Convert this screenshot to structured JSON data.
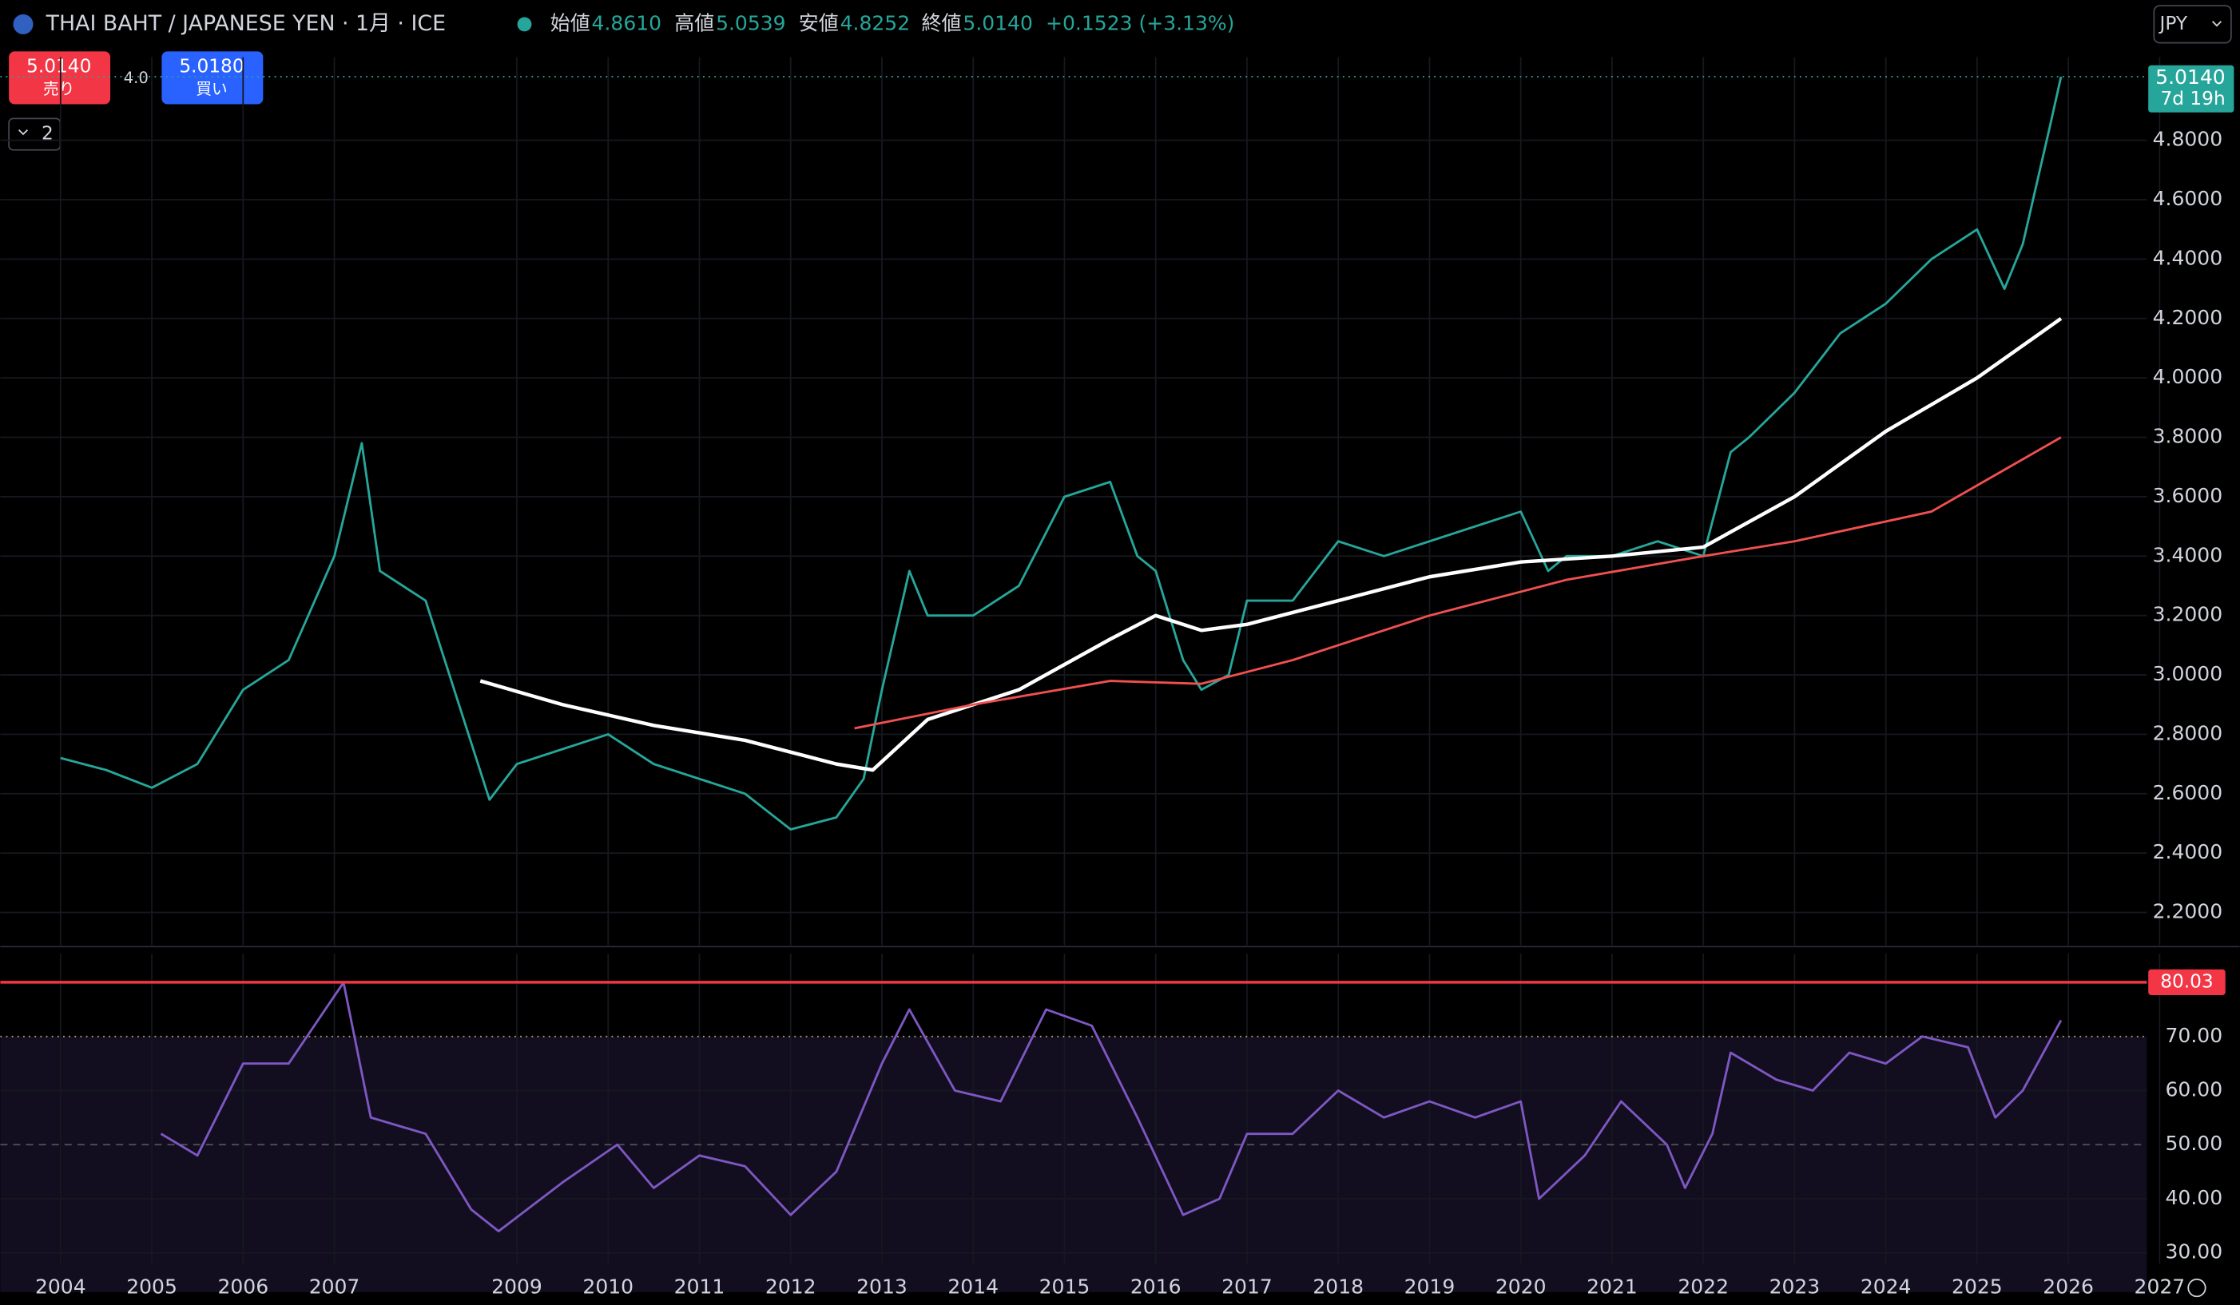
{
  "header": {
    "symbol": "THAI BAHT / JAPANESE YEN · 1月 · ICE",
    "open_label": "始値",
    "open": "4.8610",
    "high_label": "高値",
    "high": "5.0539",
    "low_label": "安値",
    "low": "4.8252",
    "close_label": "終値",
    "close": "5.0140",
    "change": "+0.1523 (+3.13%)",
    "sell_price": "5.0140",
    "sell_label": "売り",
    "spread": "4.0",
    "buy_price": "5.0180",
    "buy_label": "買い",
    "indicators": "2",
    "currency": "JPY"
  },
  "chart_data": [
    {
      "type": "line",
      "xlim": [
        2003.34,
        2026.86
      ],
      "ylim": [
        2.09,
        5.08
      ],
      "yticks": [
        {
          "value": 2.2,
          "label": "2.2000"
        },
        {
          "value": 2.4,
          "label": "2.4000"
        },
        {
          "value": 2.6,
          "label": "2.6000"
        },
        {
          "value": 2.8,
          "label": "2.8000"
        },
        {
          "value": 3.0,
          "label": "3.0000"
        },
        {
          "value": 3.2,
          "label": "3.2000"
        },
        {
          "value": 3.4,
          "label": "3.4000"
        },
        {
          "value": 3.6,
          "label": "3.6000"
        },
        {
          "value": 3.8,
          "label": "3.8000"
        },
        {
          "value": 4.0,
          "label": "4.0000"
        },
        {
          "value": 4.2,
          "label": "4.2000"
        },
        {
          "value": 4.4,
          "label": "4.4000"
        },
        {
          "value": 4.6,
          "label": "4.6000"
        },
        {
          "value": 4.8,
          "label": "4.8000"
        }
      ],
      "price_line": {
        "value": 5.014,
        "label": "5.0140",
        "countdown": "7d 19h"
      },
      "series": [
        {
          "color": "#26a69a",
          "x": [
            2004.0,
            2004.5,
            2005.0,
            2005.5,
            2006.0,
            2006.5,
            2007.0,
            2007.3,
            2007.5,
            2008.0,
            2008.7,
            2009.0,
            2009.5,
            2010.0,
            2010.5,
            2011.0,
            2011.5,
            2012.0,
            2012.5,
            2012.8,
            2013.0,
            2013.3,
            2013.5,
            2014.0,
            2014.5,
            2015.0,
            2015.5,
            2015.8,
            2016.0,
            2016.3,
            2016.5,
            2016.8,
            2017.0,
            2017.5,
            2018.0,
            2018.5,
            2019.0,
            2019.5,
            2020.0,
            2020.3,
            2020.5,
            2021.0,
            2021.5,
            2022.0,
            2022.3,
            2022.5,
            2023.0,
            2023.5,
            2024.0,
            2024.5,
            2025.0,
            2025.3,
            2025.5,
            2025.8,
            2025.92
          ],
          "values": [
            2.72,
            2.68,
            2.62,
            2.7,
            2.95,
            3.05,
            3.4,
            3.78,
            3.35,
            3.25,
            2.58,
            2.7,
            2.75,
            2.8,
            2.7,
            2.65,
            2.6,
            2.48,
            2.52,
            2.65,
            2.95,
            3.35,
            3.2,
            3.2,
            3.3,
            3.6,
            3.65,
            3.4,
            3.35,
            3.05,
            2.95,
            3.0,
            3.25,
            3.25,
            3.45,
            3.4,
            3.45,
            3.5,
            3.55,
            3.35,
            3.4,
            3.4,
            3.45,
            3.4,
            3.75,
            3.8,
            3.95,
            4.15,
            4.25,
            4.4,
            4.5,
            4.3,
            4.45,
            4.85,
            5.014
          ]
        },
        {
          "color": "#ffffff",
          "x": [
            2008.6,
            2009.5,
            2010.5,
            2011.5,
            2012.5,
            2012.9,
            2013.5,
            2014.5,
            2015.5,
            2016.0,
            2016.5,
            2017.0,
            2018.0,
            2019.0,
            2020.0,
            2021.0,
            2022.0,
            2023.0,
            2024.0,
            2025.0,
            2025.92
          ],
          "values": [
            2.98,
            2.9,
            2.83,
            2.78,
            2.7,
            2.68,
            2.85,
            2.95,
            3.12,
            3.2,
            3.15,
            3.17,
            3.25,
            3.33,
            3.38,
            3.4,
            3.43,
            3.6,
            3.82,
            4.0,
            4.2
          ]
        },
        {
          "color": "#f0504f",
          "x": [
            2012.7,
            2014.0,
            2015.5,
            2016.5,
            2017.5,
            2019.0,
            2020.5,
            2022.0,
            2023.0,
            2024.5,
            2025.92
          ],
          "values": [
            2.82,
            2.9,
            2.98,
            2.97,
            3.05,
            3.2,
            3.32,
            3.4,
            3.45,
            3.55,
            3.8
          ]
        }
      ]
    },
    {
      "type": "line",
      "xlim": [
        2003.34,
        2026.86
      ],
      "ylim": [
        28,
        85.3
      ],
      "xticks": [
        2004,
        2005,
        2006,
        2007,
        2009,
        2010,
        2011,
        2012,
        2013,
        2014,
        2015,
        2016,
        2017,
        2018,
        2019,
        2020,
        2021,
        2022,
        2023,
        2024,
        2025,
        2026,
        2027
      ],
      "yticks": [
        {
          "value": 30,
          "label": "30.00"
        },
        {
          "value": 40,
          "label": "40.00"
        },
        {
          "value": 50,
          "label": "50.00"
        },
        {
          "value": 60,
          "label": "60.00"
        },
        {
          "value": 70,
          "label": "70.00"
        }
      ],
      "band": [
        30,
        70
      ],
      "alert_line": 80.03,
      "series": [
        {
          "color": "#7e57c2",
          "x": [
            2005.1,
            2005.5,
            2006.0,
            2006.5,
            2007.1,
            2007.4,
            2008.0,
            2008.5,
            2008.8,
            2009.5,
            2010.1,
            2010.5,
            2011.0,
            2011.5,
            2012.0,
            2012.5,
            2013.0,
            2013.3,
            2013.8,
            2014.3,
            2014.8,
            2015.3,
            2015.8,
            2016.3,
            2016.7,
            2017.0,
            2017.5,
            2018.0,
            2018.5,
            2019.0,
            2019.5,
            2020.0,
            2020.2,
            2020.7,
            2021.1,
            2021.6,
            2021.8,
            2022.1,
            2022.3,
            2022.8,
            2023.2,
            2023.6,
            2024.0,
            2024.4,
            2024.9,
            2025.2,
            2025.5,
            2025.92
          ],
          "values": [
            52,
            48,
            65,
            65,
            80,
            55,
            52,
            38,
            34,
            43,
            50,
            42,
            48,
            46,
            37,
            45,
            65,
            75,
            60,
            58,
            75,
            72,
            55,
            37,
            40,
            52,
            52,
            60,
            55,
            58,
            55,
            58,
            40,
            48,
            58,
            50,
            42,
            52,
            67,
            62,
            60,
            67,
            65,
            70,
            68,
            55,
            60,
            73
          ]
        }
      ]
    }
  ]
}
